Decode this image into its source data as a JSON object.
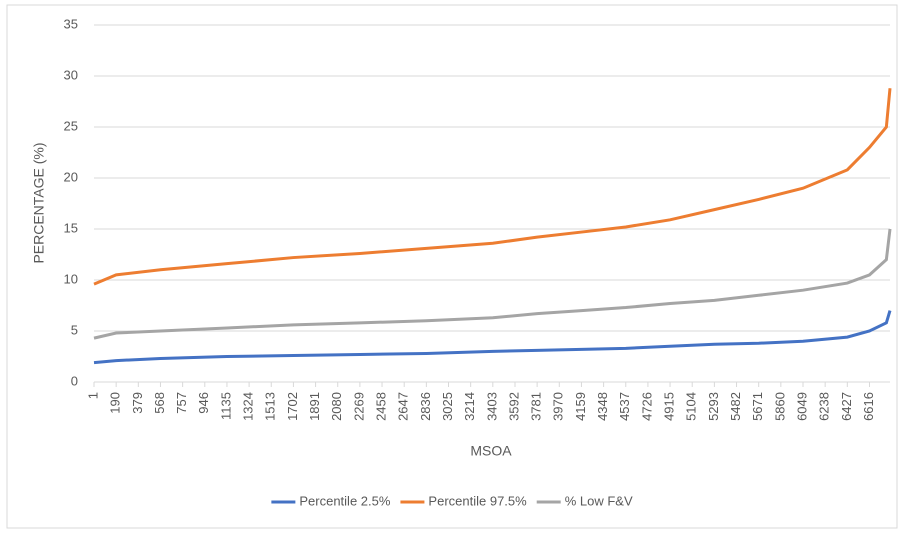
{
  "chart_data": {
    "type": "line",
    "x_label": "MSOA",
    "y_label": "PERCENTAGE (%)",
    "x": [
      1,
      190,
      568,
      1135,
      1702,
      2269,
      2836,
      3403,
      3781,
      4159,
      4537,
      4915,
      5293,
      5671,
      6049,
      6427,
      6616,
      6760,
      6791
    ],
    "series": [
      {
        "name": "Percentile 2.5%",
        "color": "#4472c4",
        "values": [
          1.9,
          2.1,
          2.3,
          2.5,
          2.6,
          2.7,
          2.8,
          3.0,
          3.1,
          3.2,
          3.3,
          3.5,
          3.7,
          3.8,
          4.0,
          4.4,
          5.0,
          5.8,
          7.0
        ]
      },
      {
        "name": "Percentile 97.5%",
        "color": "#ed7d31",
        "values": [
          9.6,
          10.5,
          11.0,
          11.6,
          12.2,
          12.6,
          13.1,
          13.6,
          14.2,
          14.7,
          15.2,
          15.9,
          16.9,
          17.9,
          19.0,
          20.8,
          23.0,
          25.0,
          28.8
        ]
      },
      {
        "name": "% Low F&V",
        "color": "#a5a5a5",
        "values": [
          4.3,
          4.8,
          5.0,
          5.3,
          5.6,
          5.8,
          6.0,
          6.3,
          6.7,
          7.0,
          7.3,
          7.7,
          8.0,
          8.5,
          9.0,
          9.7,
          10.5,
          12.0,
          15.0
        ]
      }
    ],
    "xlim": [
      1,
      6791
    ],
    "xticks": [
      1,
      190,
      379,
      568,
      757,
      946,
      1135,
      1324,
      1513,
      1702,
      1891,
      2080,
      2269,
      2458,
      2647,
      2836,
      3025,
      3214,
      3403,
      3592,
      3781,
      3970,
      4159,
      4348,
      4537,
      4726,
      4915,
      5104,
      5293,
      5482,
      5671,
      5860,
      6049,
      6238,
      6427,
      6616
    ],
    "ylim": [
      0,
      35
    ],
    "yticks": [
      0,
      5,
      10,
      15,
      20,
      25,
      30,
      35
    ],
    "grid": true,
    "legend": "bottom"
  }
}
